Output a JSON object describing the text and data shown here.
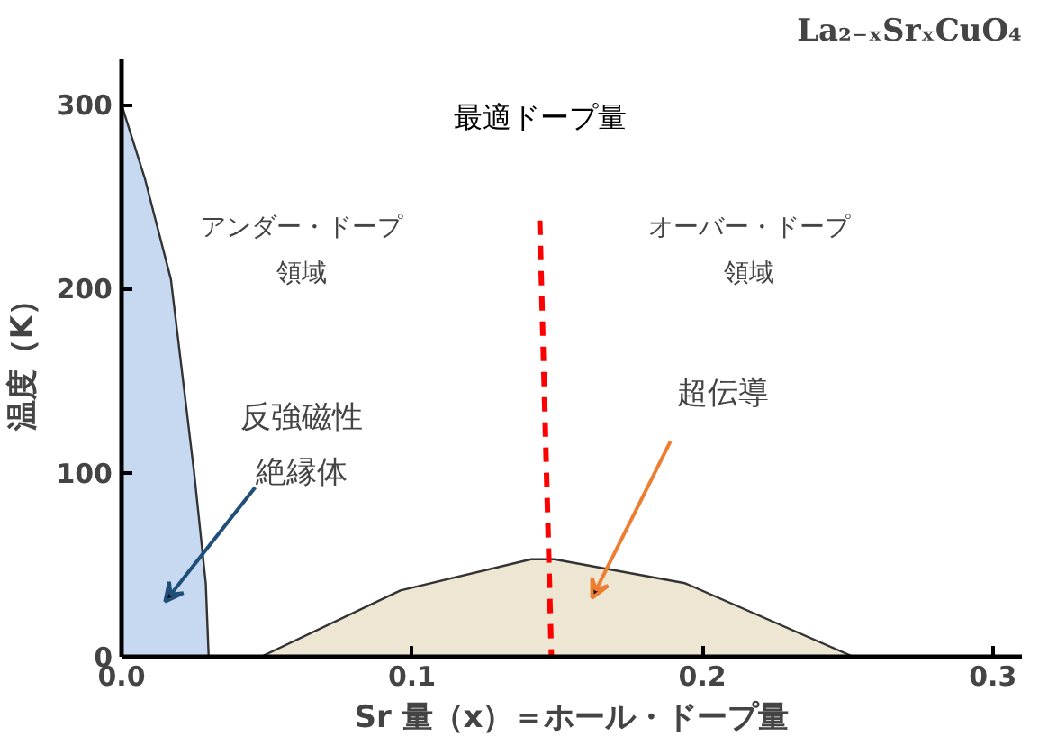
{
  "chart_data": {
    "type": "area",
    "title": "La₂₋ₓSrₓCuO₄",
    "xlabel": "Sr 量（x）＝ホール・ドープ量",
    "ylabel": "温度（K）",
    "xlim": [
      0,
      0.31
    ],
    "ylim": [
      0,
      325
    ],
    "xticks": [
      {
        "value": 0,
        "label": "0.0"
      },
      0.1,
      0.2,
      0.3
    ],
    "yticks": [
      0,
      100,
      200,
      300
    ],
    "grid": false,
    "series": [
      {
        "color": "#c6d9f0",
        "x": [
          0,
          0.008,
          0.017,
          0.025,
          0.029,
          0.03
        ],
        "values": [
          300,
          260,
          205,
          100,
          40,
          0
        ]
      },
      {
        "color": "#ece6d3",
        "x": [
          0.048,
          0.096,
          0.141,
          0.149,
          0.194,
          0.252
        ],
        "values": [
          0,
          36,
          53,
          53,
          40,
          0
        ]
      },
      {
        "type": "line",
        "name": "最適ドープ量",
        "color": "#ff0000",
        "line_style": "dashed",
        "x": [
          0.144,
          0.148
        ],
        "values": [
          237,
          0
        ]
      }
    ],
    "annotations": [
      "アンダー・ドープ",
      "領域",
      "オーバー・ドープ",
      "領域",
      "反強磁性",
      "絶縁体",
      "超伝導"
    ]
  }
}
